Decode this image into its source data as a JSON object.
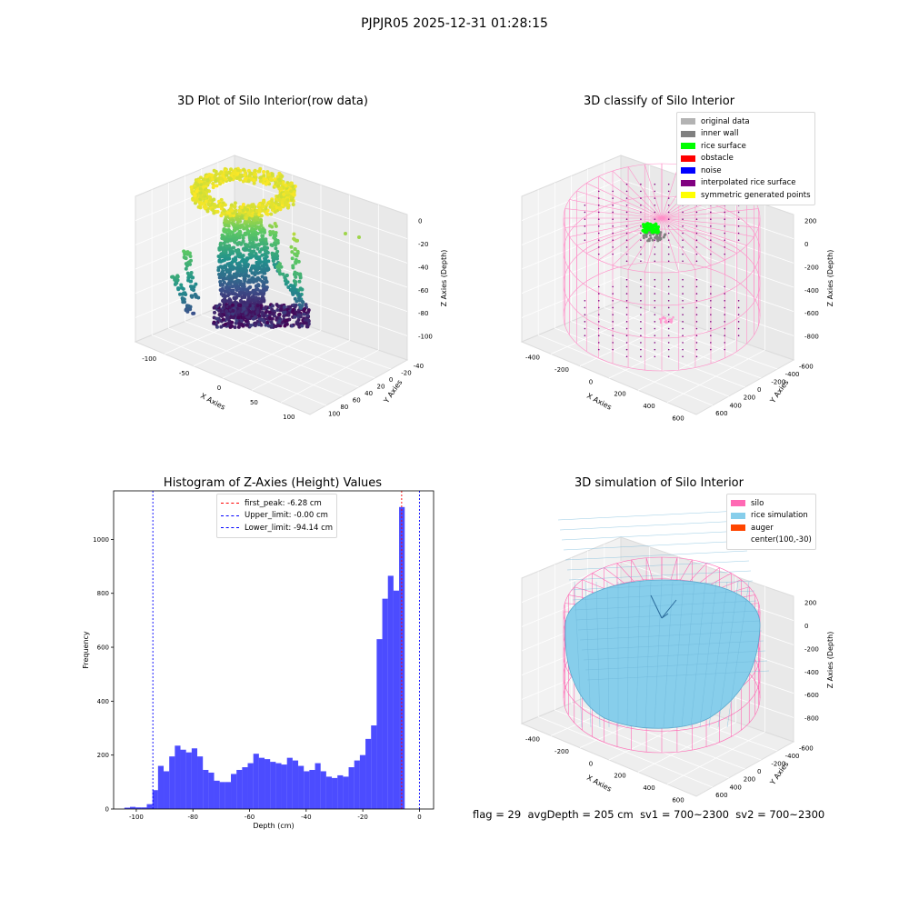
{
  "figure": {
    "suptitle": "PJPJR05 2025-12-31 01:28:15"
  },
  "chart_data": [
    {
      "type": "scatter",
      "title": "3D Plot of Silo Interior(row data)",
      "xlabel": "X Axies",
      "ylabel": "Y Axies",
      "zlabel": "Z Axies (Depth)",
      "xticks": [
        "-100",
        "-50",
        "0",
        "50",
        "100"
      ],
      "yticks": [
        "-40",
        "-20",
        "0",
        "20",
        "40",
        "60",
        "80",
        "100"
      ],
      "zticks": [
        "0",
        "-20",
        "-40",
        "-60",
        "-80",
        "-100"
      ],
      "colormap": "viridis"
    },
    {
      "type": "scatter",
      "title": "3D classify of Silo Interior",
      "xlabel": "X Axies",
      "ylabel": "Y Axies",
      "zlabel": "Z Axies (Depth)",
      "xticks": [
        "-400",
        "-200",
        "0",
        "200",
        "400",
        "600"
      ],
      "yticks": [
        "-600",
        "-400",
        "-200",
        "0",
        "200",
        "400",
        "600"
      ],
      "zticks": [
        "200",
        "0",
        "-200",
        "-400",
        "-600",
        "-800"
      ],
      "legend": [
        {
          "label": "original data",
          "color": "#b3b3b3"
        },
        {
          "label": "inner wall",
          "color": "#808080"
        },
        {
          "label": "rice surface",
          "color": "#00ff00"
        },
        {
          "label": "obstacle",
          "color": "#ff0000"
        },
        {
          "label": "noise",
          "color": "#0000ff"
        },
        {
          "label": "interpolated rice surface",
          "color": "#800080"
        },
        {
          "label": "symmetric generated points",
          "color": "#ffff00"
        }
      ],
      "legend_loc": "upper right"
    },
    {
      "type": "bar",
      "title": "Histogram of Z-Axies (Height) Values",
      "xlabel": "Depth (cm)",
      "ylabel": "Frequency",
      "xlim": [
        -108,
        5
      ],
      "ylim": [
        0,
        1180
      ],
      "xticks": [
        -100,
        -80,
        -60,
        -40,
        -20,
        0
      ],
      "yticks": [
        0,
        200,
        400,
        600,
        800,
        1000
      ],
      "bin_start": -104.2,
      "bin_width": 1.98,
      "values": [
        5,
        8,
        6,
        6,
        18,
        70,
        160,
        140,
        195,
        235,
        220,
        210,
        225,
        195,
        145,
        135,
        105,
        100,
        100,
        130,
        145,
        155,
        170,
        205,
        190,
        185,
        175,
        170,
        165,
        190,
        180,
        160,
        140,
        145,
        170,
        140,
        120,
        115,
        125,
        120,
        155,
        180,
        200,
        260,
        310,
        630,
        780,
        865,
        810,
        1120
      ],
      "bar_color": "#0000ff",
      "lines": [
        {
          "label": "first_peak: -6.28 cm",
          "x": -6.28,
          "color": "#ff0000"
        },
        {
          "label": "Upper_limit: -0.00 cm",
          "x": -0.0,
          "color": "#0000ff"
        },
        {
          "label": "Lower_limit: -94.14 cm",
          "x": -94.14,
          "color": "#0000ff"
        }
      ],
      "legend_loc": "upper center"
    },
    {
      "type": "area",
      "title": "3D simulation of Silo Interior",
      "xlabel": "X Axies",
      "ylabel": "Y Axies",
      "zlabel": "Z Axies (Depth)",
      "xticks": [
        "-400",
        "-200",
        "0",
        "200",
        "400",
        "600"
      ],
      "yticks": [
        "-600",
        "-400",
        "-200",
        "0",
        "200",
        "400",
        "600"
      ],
      "zticks": [
        "200",
        "0",
        "-200",
        "-400",
        "-600",
        "-800"
      ],
      "legend": [
        {
          "label": "silo",
          "color": "#ff69b4"
        },
        {
          "label": "rice simulation",
          "color": "#87ceeb"
        },
        {
          "label": "auger",
          "color": "#ff4500"
        },
        {
          "label": "center(100,-30)",
          "color": ""
        }
      ],
      "legend_loc": "upper right"
    }
  ],
  "footer": {
    "flag": "flag = 29",
    "avg": "avgDepth = 205 cm",
    "sv1": "sv1 = 700~2300",
    "sv2": "sv2 = 700~2300"
  }
}
